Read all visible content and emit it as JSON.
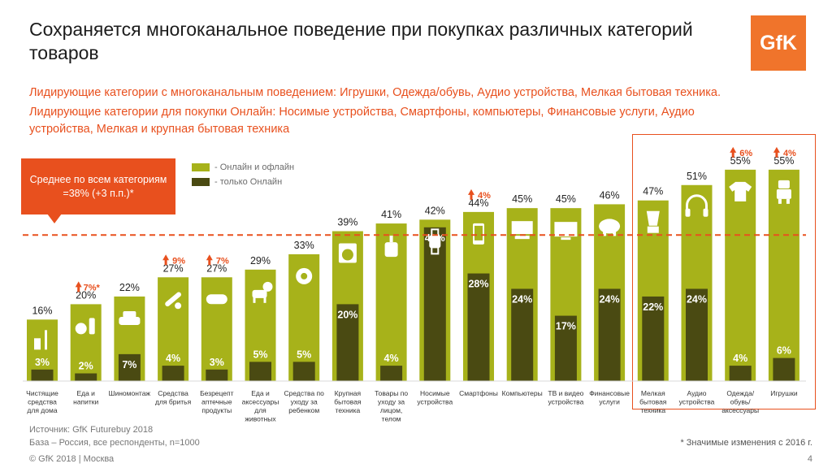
{
  "title": "Сохраняется многоканальное поведение при покупках различных категорий товаров",
  "logo": "GfK",
  "subtitle1": "Лидирующие категории с многоканальным поведением: Игрушки, Одежда/обувь, Аудио устройства, Мелкая бытовая техника.",
  "subtitle2": "Лидирующие категории для покупки Онлайн: Носимые устройства, Смартфоны, компьютеры, Финансовые услуги, Аудио устройства, Мелкая и крупная бытовая техника",
  "callout": "Среднее по всем категориям =38% (+3 п.п.)*",
  "legend": {
    "online_offline": "- Онлайн и офлайн",
    "online_only": "- только Онлайн"
  },
  "colors": {
    "light": "#a7b21a",
    "dark": "#4a4a12",
    "accent": "#e8501e",
    "label": "#ffffff"
  },
  "chart_data": {
    "type": "bar",
    "title": "",
    "xlabel": "",
    "ylabel": "",
    "ylim": [
      0,
      60
    ],
    "average_line": 38,
    "categories": [
      "Чистящие средства для дома",
      "Еда и напитки",
      "Шиномонтаж",
      "Средства для бритья",
      "Безрецепт аптечные продукты",
      "Еда и аксессуары для животных",
      "Средства по уходу за ребенком",
      "Крупная бытовая техника",
      "Товары по уходу за лицом, телом",
      "Носимые устройства",
      "Смартфоны",
      "Компьютеры",
      "ТВ и видео устройства",
      "Финансовые услуги",
      "Мелкая бытовая техника",
      "Аудио устройства",
      "Одежда/ обувь/ аксессуары",
      "Игрушки"
    ],
    "category_lines": [
      [
        "Чистящие",
        "средства",
        "для дома"
      ],
      [
        "Еда и",
        "напитки"
      ],
      [
        "Шиномонтаж"
      ],
      [
        "Средства",
        "для бритья"
      ],
      [
        "Безрецепт",
        "аптечные",
        "продукты"
      ],
      [
        "Еда и",
        "аксессуары",
        "для",
        "животных"
      ],
      [
        "Средства по",
        "уходу за",
        "ребенком"
      ],
      [
        "Крупная",
        "бытовая",
        "техника"
      ],
      [
        "Товары по",
        "уходу за",
        "лицом,",
        "телом"
      ],
      [
        "Носимые",
        "устройства"
      ],
      [
        "Смартфоны"
      ],
      [
        "Компьютеры"
      ],
      [
        "ТВ и видео",
        "устройства"
      ],
      [
        "Финансовые",
        "услуги"
      ],
      [
        "Мелкая",
        "бытовая",
        "техника"
      ],
      [
        "Аудио",
        "устройства"
      ],
      [
        "Одежда/",
        "обувь/",
        "аксессуары"
      ],
      [
        "Игрушки"
      ]
    ],
    "series": [
      {
        "name": "Онлайн и офлайн",
        "values": [
          16,
          20,
          22,
          27,
          27,
          29,
          33,
          39,
          41,
          42,
          44,
          45,
          45,
          46,
          47,
          51,
          55,
          55
        ]
      },
      {
        "name": "только Онлайн",
        "values": [
          3,
          2,
          7,
          4,
          3,
          5,
          5,
          20,
          4,
          40,
          28,
          24,
          17,
          24,
          22,
          24,
          4,
          6
        ]
      }
    ],
    "changes": [
      "",
      "7%*",
      "",
      "9%",
      "7%",
      "",
      "",
      "",
      "",
      "",
      "4%",
      "",
      "",
      "",
      "",
      "",
      "6%",
      "4%"
    ],
    "icons": [
      "cleaning-icon",
      "food-drink-icon",
      "car-icon",
      "razor-icon",
      "pill-icon",
      "dog-icon",
      "pacifier-icon",
      "washing-machine-icon",
      "lotion-icon",
      "smartwatch-icon",
      "smartphone-icon",
      "computer-icon",
      "tv-icon",
      "piggy-bank-icon",
      "blender-icon",
      "headphones-icon",
      "tshirt-icon",
      "robot-toy-icon"
    ]
  },
  "highlight_label": "",
  "footer": {
    "source": "Источник: GfK Futurebuy 2018",
    "base": "База – Россия, все респонденты, n=1000",
    "copyright": "© GfK 2018 | Москва",
    "note": "* Значимые изменения с 2016 г.",
    "page": "4"
  }
}
